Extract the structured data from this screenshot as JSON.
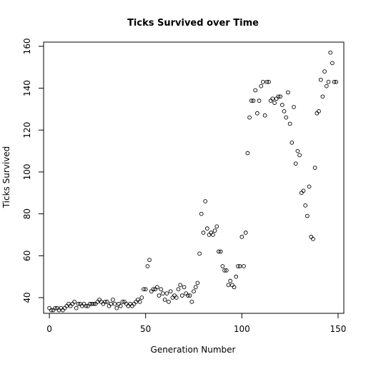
{
  "chart_data": {
    "type": "scatter",
    "title": "Ticks Survived over Time",
    "xlabel": "Generation Number",
    "ylabel": "Ticks Survived",
    "xlim": [
      -3,
      153
    ],
    "ylim": [
      32.5,
      162
    ],
    "xticks": [
      0,
      50,
      100,
      150
    ],
    "yticks": [
      40,
      60,
      80,
      100,
      120,
      140,
      160
    ],
    "grid": false,
    "legend": "none",
    "marker": "open-circle",
    "series": [
      {
        "x": [
          0,
          1,
          2,
          3,
          4,
          5,
          6,
          7,
          8,
          9,
          10,
          11,
          12,
          13,
          14,
          15,
          16,
          17,
          18,
          19,
          20,
          21,
          22,
          23,
          24,
          25,
          26,
          27,
          28,
          29,
          30,
          31,
          32,
          33,
          34,
          35,
          36,
          37,
          38,
          39,
          40,
          41,
          42,
          43,
          44,
          45,
          46,
          47,
          48,
          49,
          50,
          51,
          52,
          53,
          54,
          55,
          56,
          57,
          58,
          59,
          60,
          61,
          62,
          63,
          64,
          65,
          66,
          67,
          68,
          69,
          70,
          71,
          72,
          73,
          74,
          75,
          76,
          77,
          78,
          79,
          80,
          81,
          82,
          83,
          84,
          85,
          86,
          87,
          88,
          89,
          90,
          91,
          92,
          93,
          94,
          95,
          96,
          97,
          98,
          99,
          100,
          101,
          102,
          103,
          104,
          105,
          106,
          107,
          108,
          109,
          110,
          111,
          112,
          113,
          114,
          115,
          116,
          117,
          118,
          119,
          120,
          121,
          122,
          123,
          124,
          125,
          126,
          127,
          128,
          129,
          130,
          131,
          132,
          133,
          134,
          135,
          136,
          137,
          138,
          139,
          140,
          141,
          142,
          143,
          144,
          145,
          146,
          147,
          148,
          149
        ],
        "y": [
          35,
          34,
          34,
          35,
          35,
          34,
          35,
          34,
          35,
          36,
          37,
          36,
          37,
          38,
          35,
          37,
          37,
          36,
          37,
          36,
          36,
          37,
          37,
          37,
          37,
          38,
          39,
          38,
          37,
          38,
          38,
          36,
          37,
          39,
          37,
          35,
          37,
          36,
          38,
          38,
          37,
          36,
          37,
          36,
          37,
          38,
          39,
          38,
          40,
          44,
          44,
          55,
          58,
          43,
          44,
          44,
          45,
          41,
          44,
          42,
          39,
          42,
          38,
          43,
          40,
          41,
          40,
          44,
          46,
          41,
          45,
          42,
          41,
          41,
          38,
          43,
          45,
          47,
          61,
          80,
          71,
          86,
          73,
          70,
          71,
          70,
          72,
          74,
          62,
          62,
          55,
          53,
          53,
          46,
          48,
          46,
          45,
          50,
          55,
          55,
          69,
          55,
          71,
          109,
          126,
          134,
          134,
          139,
          128,
          134,
          141,
          143,
          127,
          143,
          143,
          134,
          135,
          133,
          135,
          136,
          136,
          132,
          129,
          126,
          138,
          123,
          114,
          131,
          104,
          110,
          108,
          90,
          91,
          84,
          79,
          93,
          69,
          68,
          102,
          128,
          129,
          144,
          136,
          148,
          141,
          143,
          157,
          152,
          143,
          143
        ]
      }
    ]
  }
}
